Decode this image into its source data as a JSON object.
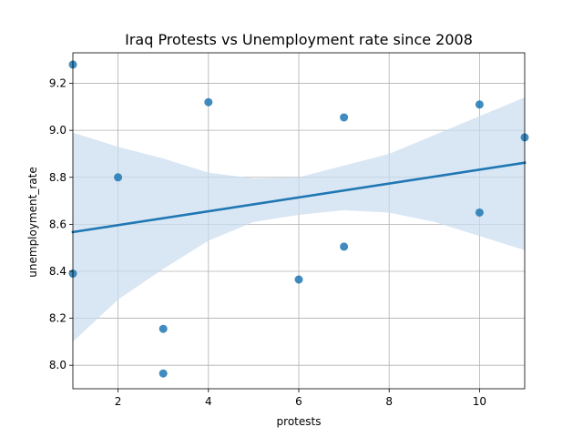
{
  "chart_data": {
    "type": "scatter",
    "title": "Iraq Protests vs Unemployment rate since 2008",
    "xlabel": "protests",
    "ylabel": "unemployment_rate",
    "xlim": [
      1,
      11
    ],
    "ylim": [
      7.9,
      9.33
    ],
    "xticks": [
      2,
      4,
      6,
      8,
      10
    ],
    "yticks": [
      8.0,
      8.2,
      8.4,
      8.6,
      8.8,
      9.0,
      9.2
    ],
    "xtick_labels": [
      "2",
      "4",
      "6",
      "8",
      "10"
    ],
    "ytick_labels": [
      "8.0",
      "8.2",
      "8.4",
      "8.6",
      "8.8",
      "9.0",
      "9.2"
    ],
    "grid": true,
    "colors": {
      "points": "#1f77b4",
      "line": "#1f77b4",
      "band": "#c9dcee"
    },
    "points": [
      {
        "x": 1,
        "y": 9.28
      },
      {
        "x": 1,
        "y": 8.39
      },
      {
        "x": 2,
        "y": 8.8
      },
      {
        "x": 3,
        "y": 8.155
      },
      {
        "x": 3,
        "y": 7.965
      },
      {
        "x": 4,
        "y": 9.12
      },
      {
        "x": 6,
        "y": 8.365
      },
      {
        "x": 7,
        "y": 9.055
      },
      {
        "x": 7,
        "y": 8.505
      },
      {
        "x": 10,
        "y": 9.11
      },
      {
        "x": 10,
        "y": 8.65
      },
      {
        "x": 11,
        "y": 8.97
      }
    ],
    "regression_line": {
      "x": [
        1,
        11
      ],
      "y": [
        8.567,
        8.862
      ]
    },
    "confidence_band": [
      {
        "x": 1,
        "lower": 8.1,
        "upper": 8.99
      },
      {
        "x": 2,
        "lower": 8.28,
        "upper": 8.93
      },
      {
        "x": 3,
        "lower": 8.41,
        "upper": 8.88
      },
      {
        "x": 4,
        "lower": 8.53,
        "upper": 8.82
      },
      {
        "x": 5,
        "lower": 8.61,
        "upper": 8.795
      },
      {
        "x": 6,
        "lower": 8.64,
        "upper": 8.8
      },
      {
        "x": 7,
        "lower": 8.66,
        "upper": 8.85
      },
      {
        "x": 8,
        "lower": 8.65,
        "upper": 8.9
      },
      {
        "x": 9,
        "lower": 8.61,
        "upper": 8.98
      },
      {
        "x": 10,
        "lower": 8.55,
        "upper": 9.06
      },
      {
        "x": 11,
        "lower": 8.49,
        "upper": 9.14
      }
    ]
  }
}
